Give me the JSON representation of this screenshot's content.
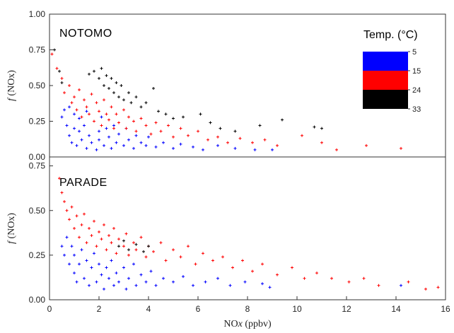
{
  "chart_data": [
    {
      "type": "scatter",
      "panel": "NOTOMO",
      "title": "NOTOMO",
      "xlabel": "",
      "ylabel": "f (NOx)",
      "ylabel_f": "f",
      "ylabel_rest": " (NOx)",
      "xlim": [
        0,
        16
      ],
      "ylim": [
        0,
        1.0
      ],
      "yticks": [
        "0.00",
        "0.25",
        "0.50",
        "0.75",
        "1.00"
      ],
      "yticks_values": [
        0,
        0.25,
        0.5,
        0.75,
        1.0
      ],
      "series": [
        {
          "color": "#0000ff",
          "temp_band": [
            5,
            15
          ],
          "points": [
            [
              0.5,
              0.28
            ],
            [
              0.6,
              0.33
            ],
            [
              0.7,
              0.22
            ],
            [
              0.8,
              0.15
            ],
            [
              0.8,
              0.35
            ],
            [
              0.9,
              0.1
            ],
            [
              1.0,
              0.2
            ],
            [
              1.0,
              0.3
            ],
            [
              1.1,
              0.08
            ],
            [
              1.2,
              0.18
            ],
            [
              1.2,
              0.27
            ],
            [
              1.3,
              0.12
            ],
            [
              1.4,
              0.22
            ],
            [
              1.5,
              0.06
            ],
            [
              1.5,
              0.32
            ],
            [
              1.6,
              0.15
            ],
            [
              1.7,
              0.1
            ],
            [
              1.8,
              0.25
            ],
            [
              1.9,
              0.05
            ],
            [
              2.0,
              0.18
            ],
            [
              2.0,
              0.12
            ],
            [
              2.1,
              0.28
            ],
            [
              2.2,
              0.08
            ],
            [
              2.3,
              0.2
            ],
            [
              2.4,
              0.14
            ],
            [
              2.5,
              0.06
            ],
            [
              2.6,
              0.22
            ],
            [
              2.7,
              0.1
            ],
            [
              2.8,
              0.16
            ],
            [
              3.0,
              0.08
            ],
            [
              3.1,
              0.2
            ],
            [
              3.2,
              0.12
            ],
            [
              3.4,
              0.06
            ],
            [
              3.5,
              0.15
            ],
            [
              3.7,
              0.1
            ],
            [
              3.9,
              0.08
            ],
            [
              4.0,
              0.14
            ],
            [
              4.3,
              0.07
            ],
            [
              4.6,
              0.1
            ],
            [
              5.0,
              0.06
            ],
            [
              5.3,
              0.09
            ],
            [
              5.8,
              0.07
            ],
            [
              6.2,
              0.05
            ],
            [
              6.8,
              0.08
            ],
            [
              7.5,
              0.06
            ],
            [
              8.3,
              0.05
            ],
            [
              9.0,
              0.05
            ]
          ]
        },
        {
          "color": "#ff0000",
          "temp_band": [
            15,
            24
          ],
          "points": [
            [
              0.1,
              0.72
            ],
            [
              0.3,
              0.62
            ],
            [
              0.5,
              0.55
            ],
            [
              0.6,
              0.45
            ],
            [
              0.8,
              0.5
            ],
            [
              0.9,
              0.38
            ],
            [
              1.0,
              0.42
            ],
            [
              1.1,
              0.33
            ],
            [
              1.2,
              0.47
            ],
            [
              1.3,
              0.28
            ],
            [
              1.4,
              0.4
            ],
            [
              1.5,
              0.35
            ],
            [
              1.6,
              0.3
            ],
            [
              1.7,
              0.44
            ],
            [
              1.8,
              0.25
            ],
            [
              1.9,
              0.38
            ],
            [
              2.0,
              0.32
            ],
            [
              2.1,
              0.22
            ],
            [
              2.2,
              0.4
            ],
            [
              2.3,
              0.3
            ],
            [
              2.4,
              0.26
            ],
            [
              2.5,
              0.35
            ],
            [
              2.6,
              0.2
            ],
            [
              2.7,
              0.3
            ],
            [
              2.8,
              0.24
            ],
            [
              3.0,
              0.33
            ],
            [
              3.1,
              0.2
            ],
            [
              3.2,
              0.28
            ],
            [
              3.4,
              0.25
            ],
            [
              3.5,
              0.18
            ],
            [
              3.7,
              0.27
            ],
            [
              3.9,
              0.22
            ],
            [
              4.1,
              0.16
            ],
            [
              4.3,
              0.24
            ],
            [
              4.5,
              0.18
            ],
            [
              4.8,
              0.22
            ],
            [
              5.0,
              0.14
            ],
            [
              5.3,
              0.2
            ],
            [
              5.6,
              0.15
            ],
            [
              6.0,
              0.18
            ],
            [
              6.4,
              0.12
            ],
            [
              6.8,
              0.14
            ],
            [
              7.2,
              0.1
            ],
            [
              7.7,
              0.13
            ],
            [
              8.2,
              0.1
            ],
            [
              8.7,
              0.12
            ],
            [
              9.2,
              0.08
            ],
            [
              10.2,
              0.15
            ],
            [
              11.0,
              0.1
            ],
            [
              11.6,
              0.05
            ],
            [
              12.8,
              0.08
            ],
            [
              14.2,
              0.06
            ]
          ]
        },
        {
          "color": "#000000",
          "temp_band": [
            24,
            33
          ],
          "points": [
            [
              0.2,
              0.75
            ],
            [
              0.4,
              0.6
            ],
            [
              0.5,
              0.52
            ],
            [
              1.6,
              0.58
            ],
            [
              1.8,
              0.6
            ],
            [
              2.0,
              0.55
            ],
            [
              2.1,
              0.62
            ],
            [
              2.2,
              0.5
            ],
            [
              2.3,
              0.57
            ],
            [
              2.4,
              0.48
            ],
            [
              2.5,
              0.55
            ],
            [
              2.6,
              0.45
            ],
            [
              2.7,
              0.52
            ],
            [
              2.8,
              0.42
            ],
            [
              2.9,
              0.5
            ],
            [
              3.0,
              0.4
            ],
            [
              3.2,
              0.45
            ],
            [
              3.3,
              0.38
            ],
            [
              3.5,
              0.42
            ],
            [
              3.7,
              0.35
            ],
            [
              3.9,
              0.38
            ],
            [
              4.2,
              0.48
            ],
            [
              4.4,
              0.32
            ],
            [
              4.7,
              0.3
            ],
            [
              5.0,
              0.27
            ],
            [
              5.4,
              0.28
            ],
            [
              6.1,
              0.3
            ],
            [
              6.5,
              0.24
            ],
            [
              6.9,
              0.2
            ],
            [
              7.5,
              0.18
            ],
            [
              8.5,
              0.22
            ],
            [
              9.4,
              0.26
            ],
            [
              10.7,
              0.21
            ],
            [
              11.0,
              0.2
            ]
          ]
        }
      ]
    },
    {
      "type": "scatter",
      "panel": "PARADE",
      "title": "PARADE",
      "xlabel": "NOx (ppbv)",
      "xlabel_main": "NO",
      "xlabel_x": "x",
      "xlabel_units": " (ppbv)",
      "ylabel": "f (NOx)",
      "ylabel_f": "f",
      "ylabel_rest": " (NOx)",
      "xlim": [
        0,
        16
      ],
      "ylim": [
        0,
        0.8
      ],
      "xticks": [
        "0",
        "2",
        "4",
        "6",
        "8",
        "10",
        "12",
        "14",
        "16"
      ],
      "xticks_values": [
        0,
        2,
        4,
        6,
        8,
        10,
        12,
        14,
        16
      ],
      "yticks": [
        "0.00",
        "0.25",
        "0.50",
        "0.75"
      ],
      "yticks_values": [
        0,
        0.25,
        0.5,
        0.75
      ],
      "series": [
        {
          "color": "#0000ff",
          "temp_band": [
            5,
            15
          ],
          "points": [
            [
              0.5,
              0.3
            ],
            [
              0.6,
              0.25
            ],
            [
              0.7,
              0.35
            ],
            [
              0.8,
              0.2
            ],
            [
              0.9,
              0.3
            ],
            [
              1.0,
              0.15
            ],
            [
              1.0,
              0.25
            ],
            [
              1.1,
              0.1
            ],
            [
              1.2,
              0.2
            ],
            [
              1.3,
              0.28
            ],
            [
              1.4,
              0.12
            ],
            [
              1.5,
              0.22
            ],
            [
              1.6,
              0.08
            ],
            [
              1.7,
              0.18
            ],
            [
              1.8,
              0.26
            ],
            [
              1.9,
              0.1
            ],
            [
              2.0,
              0.2
            ],
            [
              2.1,
              0.14
            ],
            [
              2.2,
              0.06
            ],
            [
              2.3,
              0.18
            ],
            [
              2.4,
              0.12
            ],
            [
              2.5,
              0.22
            ],
            [
              2.6,
              0.08
            ],
            [
              2.7,
              0.15
            ],
            [
              2.8,
              0.1
            ],
            [
              3.0,
              0.18
            ],
            [
              3.1,
              0.06
            ],
            [
              3.2,
              0.12
            ],
            [
              3.4,
              0.2
            ],
            [
              3.5,
              0.08
            ],
            [
              3.7,
              0.14
            ],
            [
              3.9,
              0.1
            ],
            [
              4.1,
              0.16
            ],
            [
              4.3,
              0.08
            ],
            [
              4.6,
              0.12
            ],
            [
              5.0,
              0.1
            ],
            [
              5.4,
              0.13
            ],
            [
              5.8,
              0.08
            ],
            [
              6.3,
              0.1
            ],
            [
              6.8,
              0.12
            ],
            [
              7.3,
              0.08
            ],
            [
              7.9,
              0.1
            ],
            [
              8.6,
              0.09
            ],
            [
              8.9,
              0.07
            ],
            [
              14.2,
              0.08
            ]
          ]
        },
        {
          "color": "#ff0000",
          "temp_band": [
            15,
            24
          ],
          "points": [
            [
              0.4,
              0.68
            ],
            [
              0.5,
              0.6
            ],
            [
              0.6,
              0.55
            ],
            [
              0.7,
              0.5
            ],
            [
              0.8,
              0.45
            ],
            [
              0.9,
              0.52
            ],
            [
              1.0,
              0.4
            ],
            [
              1.1,
              0.47
            ],
            [
              1.2,
              0.35
            ],
            [
              1.3,
              0.42
            ],
            [
              1.4,
              0.48
            ],
            [
              1.5,
              0.32
            ],
            [
              1.6,
              0.4
            ],
            [
              1.7,
              0.36
            ],
            [
              1.8,
              0.44
            ],
            [
              1.9,
              0.3
            ],
            [
              2.0,
              0.38
            ],
            [
              2.1,
              0.34
            ],
            [
              2.2,
              0.42
            ],
            [
              2.3,
              0.28
            ],
            [
              2.4,
              0.36
            ],
            [
              2.5,
              0.32
            ],
            [
              2.6,
              0.4
            ],
            [
              2.7,
              0.26
            ],
            [
              2.8,
              0.34
            ],
            [
              3.0,
              0.3
            ],
            [
              3.1,
              0.37
            ],
            [
              3.2,
              0.25
            ],
            [
              3.4,
              0.32
            ],
            [
              3.5,
              0.28
            ],
            [
              3.7,
              0.35
            ],
            [
              3.9,
              0.24
            ],
            [
              4.0,
              0.3
            ],
            [
              4.2,
              0.27
            ],
            [
              4.5,
              0.32
            ],
            [
              4.7,
              0.22
            ],
            [
              5.0,
              0.28
            ],
            [
              5.3,
              0.24
            ],
            [
              5.6,
              0.3
            ],
            [
              5.9,
              0.2
            ],
            [
              6.2,
              0.26
            ],
            [
              6.6,
              0.22
            ],
            [
              7.0,
              0.24
            ],
            [
              7.4,
              0.18
            ],
            [
              7.8,
              0.22
            ],
            [
              8.2,
              0.16
            ],
            [
              8.6,
              0.2
            ],
            [
              9.2,
              0.14
            ],
            [
              9.8,
              0.18
            ],
            [
              10.3,
              0.12
            ],
            [
              10.8,
              0.15
            ],
            [
              11.4,
              0.12
            ],
            [
              12.1,
              0.1
            ],
            [
              12.7,
              0.12
            ],
            [
              13.3,
              0.08
            ],
            [
              14.5,
              0.1
            ],
            [
              15.2,
              0.06
            ],
            [
              15.7,
              0.07
            ]
          ]
        },
        {
          "color": "#000000",
          "temp_band": [
            24,
            33
          ],
          "points": [
            [
              2.8,
              0.3
            ],
            [
              3.0,
              0.33
            ],
            [
              3.2,
              0.28
            ],
            [
              3.5,
              0.31
            ],
            [
              3.8,
              0.27
            ],
            [
              4.0,
              0.3
            ]
          ]
        }
      ]
    }
  ],
  "legend": {
    "title": "Temp. (°C)",
    "colors": [
      "#0000ff",
      "#ff0000",
      "#000000"
    ],
    "ticks": [
      "5",
      "15",
      "24",
      "33"
    ]
  }
}
